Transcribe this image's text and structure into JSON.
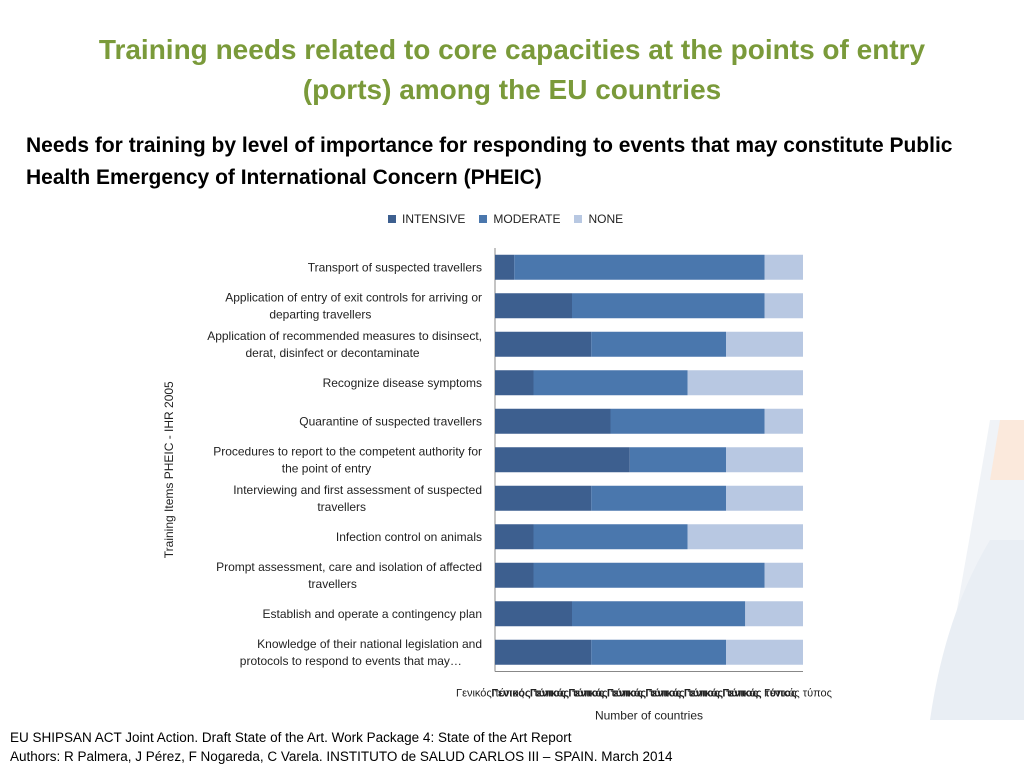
{
  "slide": {
    "title_line1": "Training needs related to core capacities at the points of entry",
    "title_line2": "(ports) among the EU countries",
    "subtitle_line1": "Needs for training by level of importance for responding to events that may constitute Public",
    "subtitle_line2": "Health Emergency of International Concern (PHEIC)",
    "footer_line1": "EU SHIPSAN ACT Joint Action. Draft State of the Art. Work Package 4: State of the Art Report",
    "footer_line2": "Authors: R Palmera, J Pérez, F Nogareda, C Varela. INSTITUTO de SALUD CARLOS III – SPAIN. March 2014"
  },
  "colors": {
    "title": "#7a9a3a",
    "intensive": "#3d5f8f",
    "moderate": "#4a77ad",
    "none": "#b8c8e2"
  },
  "chart_data": {
    "type": "bar",
    "orientation": "horizontal",
    "stacked": true,
    "ylabel": "Training Items PHEIC - IHR 2005",
    "xlabel": "Number of countries",
    "xtick_labels": [
      "Γενικός τύπος",
      "Γενικός τύπος",
      "Γενικός τύπος",
      "Γενικός τύπος",
      "Γενικός τύπος",
      "Γενικός τύπος",
      "Γενικός τύπος",
      "Γενικός τύπος",
      "Γενικός τύπος"
    ],
    "xlim": [
      0,
      16
    ],
    "legend_position": "top",
    "categories": [
      [
        "Transport of suspected travellers"
      ],
      [
        "Application of entry of exit controls for arriving or",
        "departing travellers"
      ],
      [
        "Application of recommended measures to disinsect,",
        "derat, disinfect or decontaminate"
      ],
      [
        "Recognize disease symptoms"
      ],
      [
        "Quarantine of suspected travellers"
      ],
      [
        "Procedures to report to the competent authority for",
        "the point of entry"
      ],
      [
        "Interviewing and first assessment of suspected",
        "travellers"
      ],
      [
        "Infection control on animals"
      ],
      [
        "Prompt assessment, care and isolation of affected",
        "travellers"
      ],
      [
        "Establish and operate a contingency plan"
      ],
      [
        "Knowledge of their national legislation and",
        "protocols to respond to events that may…"
      ]
    ],
    "series": [
      {
        "name": "INTENSIVE",
        "color": "#3d5f8f",
        "values": [
          1,
          4,
          5,
          2,
          6,
          7,
          5,
          2,
          2,
          4,
          5
        ]
      },
      {
        "name": "MODERATE",
        "color": "#4a77ad",
        "values": [
          13,
          10,
          7,
          8,
          8,
          5,
          7,
          8,
          12,
          9,
          7
        ]
      },
      {
        "name": "NONE",
        "color": "#b8c8e2",
        "values": [
          2,
          2,
          4,
          6,
          2,
          4,
          4,
          6,
          2,
          3,
          4
        ]
      }
    ]
  }
}
